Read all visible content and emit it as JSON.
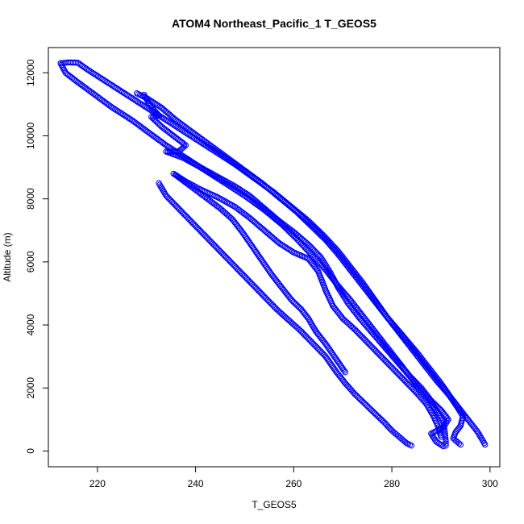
{
  "chart_data": {
    "type": "scatter",
    "title": "ATOM4 Northeast_Pacific_1 T_GEOS5",
    "xlabel": "T_GEOS5",
    "ylabel": "Altitude (m)",
    "xlim": [
      210,
      302
    ],
    "ylim": [
      -500,
      12800
    ],
    "xticks": [
      220,
      240,
      260,
      280,
      300
    ],
    "yticks": [
      0,
      2000,
      4000,
      6000,
      8000,
      10000,
      12000
    ],
    "marker": "open-circle",
    "color": "#0000ff",
    "grid": false,
    "legend": "none",
    "series": [
      {
        "points": [
          [
            212.5,
            12300
          ],
          [
            213.5,
            12000
          ],
          [
            216,
            11700
          ],
          [
            219.5,
            11300
          ],
          [
            223,
            10900
          ],
          [
            227,
            10500
          ],
          [
            230.5,
            10100
          ],
          [
            234,
            9700
          ],
          [
            238,
            9300
          ],
          [
            242,
            8900
          ],
          [
            246,
            8500
          ],
          [
            250,
            8100
          ],
          [
            254,
            7650
          ],
          [
            257.5,
            7200
          ],
          [
            260.5,
            6750
          ],
          [
            263.5,
            6250
          ],
          [
            266.5,
            5750
          ],
          [
            269,
            5250
          ],
          [
            271.5,
            4800
          ],
          [
            274,
            4300
          ],
          [
            276.5,
            3800
          ],
          [
            279,
            3300
          ],
          [
            281.5,
            2800
          ],
          [
            284,
            2300
          ],
          [
            286,
            1900
          ],
          [
            288,
            1550
          ],
          [
            289.5,
            1200
          ],
          [
            290.5,
            900
          ],
          [
            290.8,
            600
          ],
          [
            291,
            300
          ],
          [
            291,
            170
          ]
        ]
      },
      {
        "points": [
          [
            212.5,
            12300
          ],
          [
            214,
            12330
          ],
          [
            216,
            12320
          ],
          [
            218,
            12100
          ],
          [
            221,
            11800
          ],
          [
            224.5,
            11450
          ],
          [
            228,
            11100
          ],
          [
            232,
            10700
          ],
          [
            236,
            10300
          ],
          [
            240,
            9900
          ],
          [
            244,
            9500
          ],
          [
            248,
            9100
          ],
          [
            252,
            8650
          ],
          [
            256,
            8200
          ],
          [
            259.5,
            7750
          ],
          [
            263,
            7300
          ],
          [
            266,
            6850
          ],
          [
            269,
            6350
          ],
          [
            271.5,
            5850
          ],
          [
            274,
            5350
          ],
          [
            276.5,
            4800
          ],
          [
            279,
            4250
          ],
          [
            282,
            3700
          ],
          [
            285,
            3150
          ],
          [
            287.5,
            2650
          ],
          [
            290,
            2150
          ],
          [
            292,
            1700
          ],
          [
            293.5,
            1350
          ],
          [
            294.5,
            1100
          ],
          [
            294,
            800
          ],
          [
            293,
            600
          ],
          [
            292.5,
            400
          ],
          [
            294,
            200
          ]
        ]
      },
      {
        "points": [
          [
            228,
            11350
          ],
          [
            230,
            11200
          ],
          [
            233,
            10900
          ],
          [
            236,
            10500
          ],
          [
            239.5,
            10100
          ],
          [
            243,
            9700
          ],
          [
            246.5,
            9300
          ],
          [
            250,
            8900
          ],
          [
            253.5,
            8500
          ],
          [
            257,
            8050
          ],
          [
            260.5,
            7600
          ],
          [
            263.5,
            7150
          ],
          [
            266.5,
            6700
          ],
          [
            269,
            6250
          ],
          [
            271.5,
            5750
          ],
          [
            274,
            5250
          ],
          [
            276.5,
            4750
          ],
          [
            279,
            4250
          ],
          [
            281.5,
            3750
          ],
          [
            284,
            3250
          ],
          [
            286.5,
            2750
          ],
          [
            289,
            2250
          ],
          [
            291.5,
            1800
          ],
          [
            293.5,
            1400
          ],
          [
            295.5,
            1000
          ],
          [
            297.5,
            600
          ],
          [
            299,
            200
          ]
        ]
      },
      {
        "points": [
          [
            229.5,
            11300
          ],
          [
            231,
            10900
          ],
          [
            232.5,
            10650
          ],
          [
            231,
            10600
          ],
          [
            233,
            10300
          ],
          [
            235.5,
            10000
          ],
          [
            238,
            9700
          ],
          [
            236.5,
            9500
          ],
          [
            234,
            9500
          ],
          [
            237.5,
            9300
          ],
          [
            241,
            9000
          ],
          [
            244.5,
            8700
          ],
          [
            248,
            8400
          ],
          [
            251,
            8100
          ],
          [
            254,
            7700
          ],
          [
            257,
            7300
          ],
          [
            260,
            6950
          ],
          [
            263,
            6550
          ],
          [
            265.5,
            6150
          ],
          [
            267.5,
            5650
          ],
          [
            269,
            5200
          ],
          [
            271,
            4700
          ],
          [
            273.5,
            4200
          ],
          [
            276,
            3750
          ],
          [
            278.5,
            3300
          ],
          [
            281,
            2850
          ],
          [
            283.5,
            2400
          ],
          [
            286,
            2000
          ],
          [
            288,
            1600
          ],
          [
            290,
            1300
          ],
          [
            291.5,
            1000
          ],
          [
            290.5,
            750
          ],
          [
            288,
            550
          ],
          [
            289,
            300
          ],
          [
            290.5,
            150
          ]
        ]
      },
      {
        "points": [
          [
            235.5,
            8800
          ],
          [
            238,
            8550
          ],
          [
            241,
            8300
          ],
          [
            244.5,
            8050
          ],
          [
            248,
            7750
          ],
          [
            251,
            7400
          ],
          [
            254,
            7000
          ],
          [
            257,
            6600
          ],
          [
            260,
            6300
          ],
          [
            263,
            6100
          ],
          [
            265,
            5700
          ],
          [
            266.5,
            5100
          ],
          [
            268,
            4600
          ],
          [
            270,
            4200
          ],
          [
            272.5,
            3850
          ],
          [
            275,
            3450
          ],
          [
            277.5,
            3050
          ],
          [
            280,
            2650
          ],
          [
            282.5,
            2250
          ],
          [
            285,
            1850
          ],
          [
            287,
            1500
          ],
          [
            288.5,
            1100
          ],
          [
            289.5,
            750
          ],
          [
            290,
            450
          ]
        ]
      },
      {
        "points": [
          [
            232.5,
            8500
          ],
          [
            234,
            8100
          ],
          [
            236.5,
            7700
          ],
          [
            239,
            7300
          ],
          [
            241.5,
            6900
          ],
          [
            244,
            6500
          ],
          [
            246.5,
            6100
          ],
          [
            249,
            5700
          ],
          [
            251.5,
            5300
          ],
          [
            254,
            4900
          ],
          [
            256.5,
            4500
          ],
          [
            259,
            4150
          ],
          [
            261.5,
            3800
          ],
          [
            264,
            3400
          ],
          [
            266.5,
            3000
          ],
          [
            268.5,
            2550
          ],
          [
            270.5,
            2150
          ],
          [
            272.5,
            1800
          ],
          [
            274.5,
            1500
          ],
          [
            276.5,
            1200
          ],
          [
            278.5,
            900
          ],
          [
            280,
            650
          ],
          [
            281.5,
            450
          ],
          [
            283,
            250
          ],
          [
            284,
            170
          ]
        ]
      },
      {
        "points": [
          [
            236,
            8750
          ],
          [
            239,
            8400
          ],
          [
            242,
            8050
          ],
          [
            245,
            7700
          ],
          [
            247.5,
            7350
          ],
          [
            249.5,
            6950
          ],
          [
            251.5,
            6500
          ],
          [
            253.5,
            6050
          ],
          [
            255.5,
            5600
          ],
          [
            257.5,
            5200
          ],
          [
            259.5,
            4800
          ],
          [
            261.5,
            4500
          ],
          [
            263,
            4200
          ],
          [
            264.5,
            3800
          ],
          [
            266.5,
            3400
          ],
          [
            268.5,
            2950
          ],
          [
            270.5,
            2500
          ]
        ]
      }
    ]
  }
}
